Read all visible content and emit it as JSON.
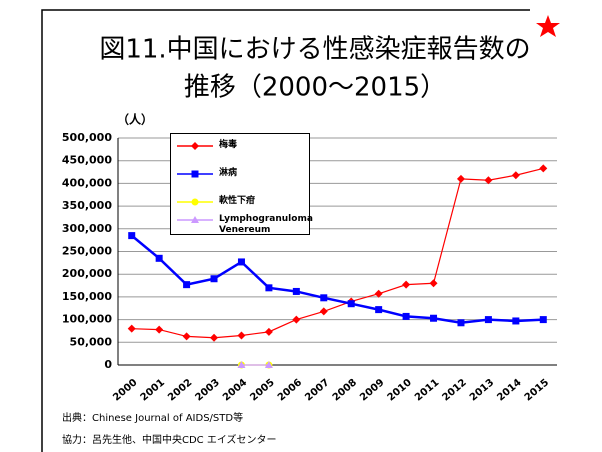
{
  "chart_data": {
    "type": "line",
    "title": "図11.中国における性感染症報告数の",
    "title_line2": "推移（2000〜2015）",
    "y_unit": "（人）",
    "categories": [
      "2000",
      "2001",
      "2002",
      "2003",
      "2004",
      "2005",
      "2006",
      "2007",
      "2008",
      "2009",
      "2010",
      "2011",
      "2012",
      "2013",
      "2014",
      "2015"
    ],
    "series": [
      {
        "name": "梅毒",
        "color": "#ff0000",
        "marker": "diamond",
        "values": [
          80000,
          78000,
          63000,
          60000,
          65000,
          73000,
          100000,
          118000,
          140000,
          157000,
          177000,
          180000,
          410000,
          407000,
          418000,
          433000
        ]
      },
      {
        "name": "淋病",
        "color": "#0000ff",
        "marker": "square",
        "values": [
          285000,
          235000,
          177000,
          190000,
          227000,
          170000,
          162000,
          148000,
          135000,
          122000,
          107000,
          103000,
          93000,
          100000,
          97000,
          100000
        ]
      },
      {
        "name": "軟性下疳",
        "color": "#ffff00",
        "marker": "circle",
        "values": [
          null,
          null,
          null,
          null,
          0,
          0,
          null,
          null,
          null,
          null,
          null,
          null,
          null,
          null,
          null,
          null
        ]
      },
      {
        "name": "Lymphogranuloma Venereum",
        "color": "#cc99ff",
        "marker": "triangle",
        "values": [
          null,
          null,
          null,
          null,
          0,
          0,
          null,
          null,
          null,
          null,
          null,
          null,
          null,
          null,
          null,
          null
        ]
      }
    ],
    "ylim": [
      0,
      500000
    ],
    "yticks": [
      0,
      {
        "value": 50000,
        "label": "50,000"
      },
      {
        "value": 100000,
        "label": "100,000"
      },
      {
        "value": 150000,
        "label": "150,000"
      },
      {
        "value": 200000,
        "label": "200,000"
      },
      {
        "value": 250000,
        "label": "250,000"
      },
      {
        "value": 300000,
        "label": "300,000"
      },
      {
        "value": 350000,
        "label": "350,000"
      },
      {
        "value": 400000,
        "label": "400,000"
      },
      {
        "value": 450000,
        "label": "450,000"
      },
      {
        "value": 500000,
        "label": "500,000"
      }
    ],
    "grid": true,
    "notes": [
      "出典：Chinese Journal of AIDS/STD等",
      "協力：呂先生他、中国中央CDC エイズセンター"
    ]
  }
}
